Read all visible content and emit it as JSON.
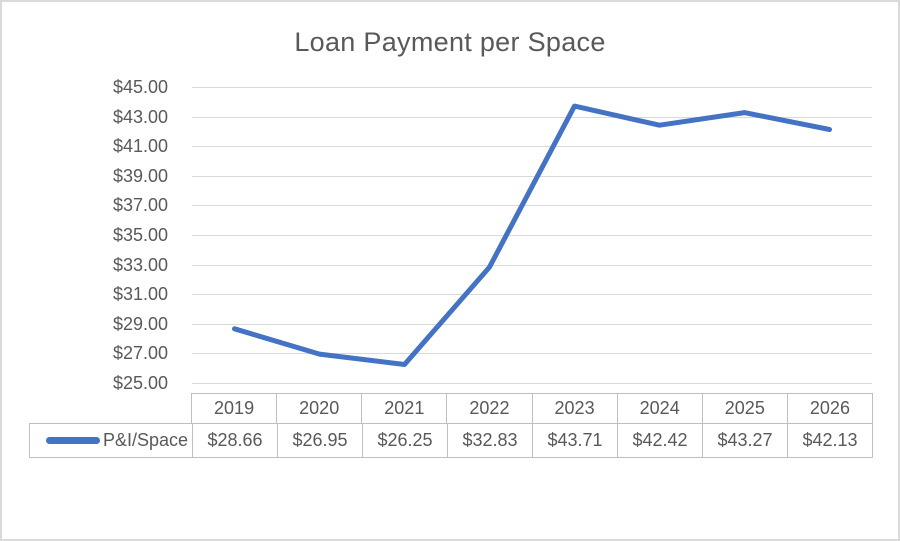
{
  "window": {
    "background": "#ffffff",
    "border_color": "#dadada"
  },
  "chart_data": {
    "type": "line",
    "title": "Loan Payment per Space",
    "categories": [
      "2019",
      "2020",
      "2021",
      "2022",
      "2023",
      "2024",
      "2025",
      "2026"
    ],
    "series": [
      {
        "name": "P&I/Space",
        "values": [
          28.66,
          26.95,
          26.25,
          32.83,
          43.71,
          42.42,
          43.27,
          42.13
        ],
        "values_display": [
          "$28.66",
          "$26.95",
          "$26.25",
          "$32.83",
          "$43.71",
          "$42.42",
          "$43.27",
          "$42.13"
        ],
        "color": "#4472C4"
      }
    ],
    "ylim": [
      25,
      45
    ],
    "y_tick_step": 2,
    "y_tick_labels": [
      "$25.00",
      "$27.00",
      "$29.00",
      "$31.00",
      "$33.00",
      "$35.00",
      "$37.00",
      "$39.00",
      "$41.00",
      "$43.00",
      "$45.00"
    ],
    "grid": true,
    "gridline_color": "#d9d9d9",
    "table_border_color": "#bfbfbf",
    "axis_label_color": "#595959",
    "title_color": "#595959",
    "legend_position": "data-table",
    "line_width": 5
  }
}
